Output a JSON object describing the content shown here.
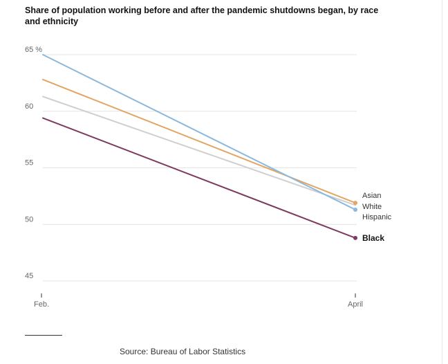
{
  "title": "Share of population working before and after the pandemic shutdowns began, by race and ethnicity",
  "source": "Source: Bureau of Labor Statistics",
  "chart_data": {
    "type": "line",
    "title": "Share of population working before and after the pandemic shutdowns began, by race and ethnicity",
    "xlabel": "",
    "ylabel": "",
    "categories": [
      "Feb.",
      "April"
    ],
    "y_unit": "%",
    "ylim": [
      44,
      65.5
    ],
    "y_ticks": [
      65,
      60,
      55,
      50,
      45
    ],
    "y_tick_labels": [
      "65 %",
      "60",
      "55",
      "50",
      "45"
    ],
    "grid": true,
    "series": [
      {
        "name": "Asian",
        "values": [
          62.8,
          51.9
        ],
        "color": "#e2a563",
        "bold": false
      },
      {
        "name": "White",
        "values": [
          65.0,
          51.3
        ],
        "color": "#8bb8dc",
        "bold": false
      },
      {
        "name": "Hispanic",
        "values": [
          61.3,
          51.7
        ],
        "color": "#cfcfcf",
        "bold": false
      },
      {
        "name": "Black",
        "values": [
          59.4,
          48.8
        ],
        "color": "#7d3a5e",
        "bold": true
      }
    ]
  }
}
